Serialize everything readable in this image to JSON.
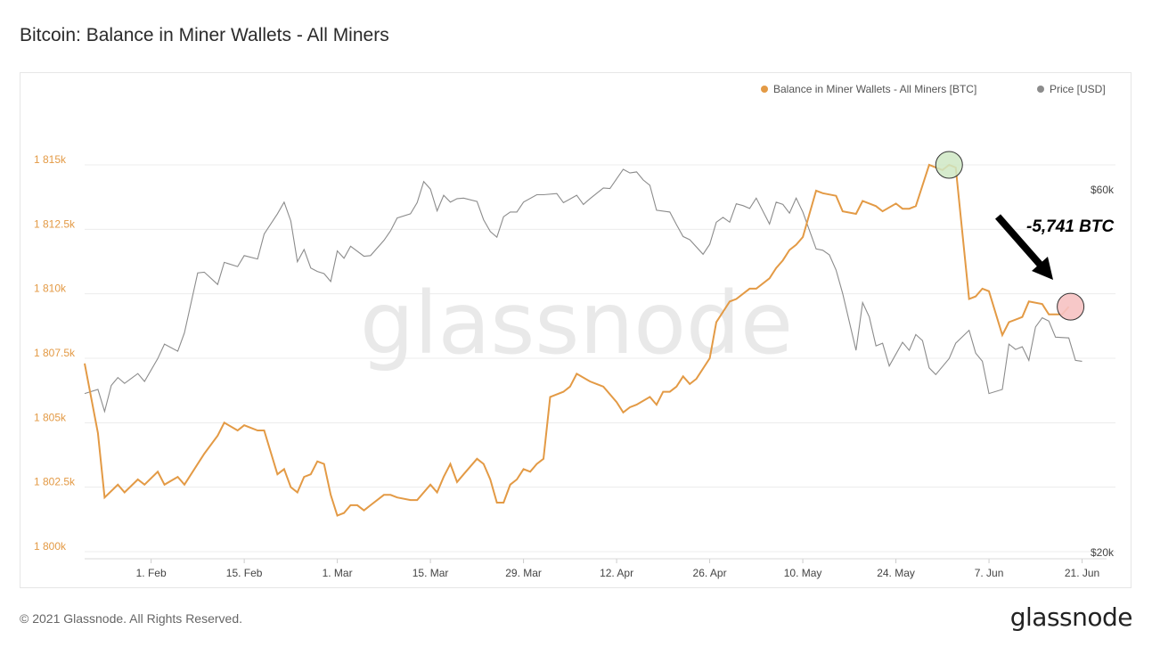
{
  "title": "Bitcoin: Balance in Miner Wallets - All Miners",
  "footer": {
    "copyright": "© 2021 Glassnode. All Rights Reserved.",
    "logo_text": "glassnode"
  },
  "watermark": "glassnode",
  "annotation": {
    "text": "-5,741 BTC"
  },
  "colors": {
    "balance": "#e39a45",
    "price": "#8c8c8c",
    "grid": "#ececec",
    "start_marker": "#cfe8c4",
    "end_marker": "#f6c2c2"
  },
  "chart_data": {
    "type": "line",
    "title": "Bitcoin: Balance in Miner Wallets - All Miners",
    "x_range": [
      "2021-01-22",
      "2021-06-22"
    ],
    "x_ticks": [
      {
        "date": "2021-02-01",
        "label": "1. Feb"
      },
      {
        "date": "2021-02-15",
        "label": "15. Feb"
      },
      {
        "date": "2021-03-01",
        "label": "1. Mar"
      },
      {
        "date": "2021-03-15",
        "label": "15. Mar"
      },
      {
        "date": "2021-03-29",
        "label": "29. Mar"
      },
      {
        "date": "2021-04-12",
        "label": "12. Apr"
      },
      {
        "date": "2021-04-26",
        "label": "26. Apr"
      },
      {
        "date": "2021-05-10",
        "label": "10. May"
      },
      {
        "date": "2021-05-24",
        "label": "24. May"
      },
      {
        "date": "2021-06-07",
        "label": "7. Jun"
      },
      {
        "date": "2021-06-21",
        "label": "21. Jun"
      }
    ],
    "y_left": {
      "ylim": [
        1800000,
        1815000
      ],
      "ticks": [
        {
          "value": 1800000,
          "label": "1 800k"
        },
        {
          "value": 1802500,
          "label": "1 802.5k"
        },
        {
          "value": 1805000,
          "label": "1 805k"
        },
        {
          "value": 1807500,
          "label": "1 807.5k"
        },
        {
          "value": 1810000,
          "label": "1 810k"
        },
        {
          "value": 1812500,
          "label": "1 812.5k"
        },
        {
          "value": 1815000,
          "label": "1 815k"
        }
      ]
    },
    "y_right": {
      "scale": "log",
      "ylim": [
        20000,
        60000
      ],
      "ticks": [
        {
          "value": 20000,
          "label": "$20k"
        },
        {
          "value": 60000,
          "label": "$60k"
        }
      ]
    },
    "legend_placement": "top-right",
    "series": [
      {
        "name": "Balance in Miner Wallets - All Miners [BTC]",
        "axis": "left",
        "x": [
          "2021-01-22",
          "2021-01-24",
          "2021-01-25",
          "2021-01-27",
          "2021-01-28",
          "2021-01-30",
          "2021-01-31",
          "2021-02-02",
          "2021-02-03",
          "2021-02-05",
          "2021-02-06",
          "2021-02-08",
          "2021-02-09",
          "2021-02-11",
          "2021-02-12",
          "2021-02-14",
          "2021-02-15",
          "2021-02-17",
          "2021-02-18",
          "2021-02-20",
          "2021-02-21",
          "2021-02-22",
          "2021-02-23",
          "2021-02-24",
          "2021-02-25",
          "2021-02-26",
          "2021-02-27",
          "2021-02-28",
          "2021-03-01",
          "2021-03-02",
          "2021-03-03",
          "2021-03-04",
          "2021-03-05",
          "2021-03-06",
          "2021-03-08",
          "2021-03-09",
          "2021-03-10",
          "2021-03-12",
          "2021-03-13",
          "2021-03-15",
          "2021-03-16",
          "2021-03-17",
          "2021-03-18",
          "2021-03-19",
          "2021-03-20",
          "2021-03-22",
          "2021-03-23",
          "2021-03-24",
          "2021-03-25",
          "2021-03-26",
          "2021-03-27",
          "2021-03-28",
          "2021-03-29",
          "2021-03-30",
          "2021-03-31",
          "2021-04-01",
          "2021-04-02",
          "2021-04-04",
          "2021-04-05",
          "2021-04-06",
          "2021-04-08",
          "2021-04-09",
          "2021-04-10",
          "2021-04-12",
          "2021-04-13",
          "2021-04-14",
          "2021-04-15",
          "2021-04-17",
          "2021-04-18",
          "2021-04-19",
          "2021-04-20",
          "2021-04-21",
          "2021-04-22",
          "2021-04-23",
          "2021-04-24",
          "2021-04-26",
          "2021-04-27",
          "2021-04-29",
          "2021-04-30",
          "2021-05-02",
          "2021-05-03",
          "2021-05-05",
          "2021-05-06",
          "2021-05-07",
          "2021-05-08",
          "2021-05-09",
          "2021-05-10",
          "2021-05-12",
          "2021-05-13",
          "2021-05-15",
          "2021-05-16",
          "2021-05-18",
          "2021-05-19",
          "2021-05-21",
          "2021-05-22",
          "2021-05-24",
          "2021-05-25",
          "2021-05-26",
          "2021-05-27",
          "2021-05-29",
          "2021-05-30",
          "2021-05-31",
          "2021-06-01",
          "2021-06-02",
          "2021-06-04",
          "2021-06-05",
          "2021-06-06",
          "2021-06-07",
          "2021-06-09",
          "2021-06-10",
          "2021-06-12",
          "2021-06-13",
          "2021-06-15",
          "2021-06-16",
          "2021-06-18",
          "2021-06-19"
        ],
        "values": [
          1807300,
          1804600,
          1802100,
          1802600,
          1802300,
          1802800,
          1802600,
          1803100,
          1802600,
          1802900,
          1802600,
          1803400,
          1803800,
          1804500,
          1805000,
          1804700,
          1804900,
          1804700,
          1804700,
          1803000,
          1803200,
          1802500,
          1802300,
          1802900,
          1803000,
          1803500,
          1803400,
          1802200,
          1801400,
          1801500,
          1801800,
          1801800,
          1801600,
          1801800,
          1802200,
          1802200,
          1802100,
          1802000,
          1802000,
          1802600,
          1802300,
          1802900,
          1803400,
          1802700,
          1803000,
          1803600,
          1803400,
          1802800,
          1801900,
          1801900,
          1802600,
          1802800,
          1803200,
          1803100,
          1803400,
          1803600,
          1806000,
          1806200,
          1806400,
          1806900,
          1806600,
          1806500,
          1806400,
          1805800,
          1805400,
          1805600,
          1805700,
          1806000,
          1805700,
          1806200,
          1806200,
          1806400,
          1806800,
          1806500,
          1806700,
          1807500,
          1808900,
          1809700,
          1809800,
          1810200,
          1810200,
          1810600,
          1811000,
          1811300,
          1811700,
          1811900,
          1812200,
          1814000,
          1813900,
          1813800,
          1813200,
          1813100,
          1813600,
          1813400,
          1813200,
          1813500,
          1813300,
          1813300,
          1813400,
          1815000,
          1814900,
          1814800,
          1815000,
          1814900,
          1809800,
          1809900,
          1810200,
          1810100,
          1808400,
          1808900,
          1809100,
          1809700,
          1809600,
          1809200,
          1809200,
          1809500
        ]
      },
      {
        "name": "Price [USD]",
        "axis": "right",
        "x": [
          "2021-01-22",
          "2021-01-24",
          "2021-01-25",
          "2021-01-26",
          "2021-01-27",
          "2021-01-28",
          "2021-01-30",
          "2021-01-31",
          "2021-02-02",
          "2021-02-03",
          "2021-02-05",
          "2021-02-06",
          "2021-02-08",
          "2021-02-09",
          "2021-02-11",
          "2021-02-12",
          "2021-02-14",
          "2021-02-15",
          "2021-02-17",
          "2021-02-18",
          "2021-02-20",
          "2021-02-21",
          "2021-02-22",
          "2021-02-23",
          "2021-02-24",
          "2021-02-25",
          "2021-02-26",
          "2021-02-27",
          "2021-02-28",
          "2021-03-01",
          "2021-03-02",
          "2021-03-03",
          "2021-03-05",
          "2021-03-06",
          "2021-03-08",
          "2021-03-09",
          "2021-03-10",
          "2021-03-12",
          "2021-03-13",
          "2021-03-14",
          "2021-03-15",
          "2021-03-16",
          "2021-03-17",
          "2021-03-18",
          "2021-03-19",
          "2021-03-20",
          "2021-03-22",
          "2021-03-23",
          "2021-03-24",
          "2021-03-25",
          "2021-03-26",
          "2021-03-27",
          "2021-03-28",
          "2021-03-29",
          "2021-03-31",
          "2021-04-01",
          "2021-04-03",
          "2021-04-04",
          "2021-04-06",
          "2021-04-07",
          "2021-04-08",
          "2021-04-10",
          "2021-04-11",
          "2021-04-13",
          "2021-04-14",
          "2021-04-15",
          "2021-04-16",
          "2021-04-17",
          "2021-04-18",
          "2021-04-20",
          "2021-04-21",
          "2021-04-22",
          "2021-04-23",
          "2021-04-25",
          "2021-04-26",
          "2021-04-27",
          "2021-04-28",
          "2021-04-29",
          "2021-04-30",
          "2021-05-01",
          "2021-05-02",
          "2021-05-03",
          "2021-05-05",
          "2021-05-06",
          "2021-05-07",
          "2021-05-08",
          "2021-05-09",
          "2021-05-10",
          "2021-05-12",
          "2021-05-13",
          "2021-05-14",
          "2021-05-15",
          "2021-05-16",
          "2021-05-18",
          "2021-05-19",
          "2021-05-20",
          "2021-05-21",
          "2021-05-22",
          "2021-05-23",
          "2021-05-25",
          "2021-05-26",
          "2021-05-27",
          "2021-05-28",
          "2021-05-29",
          "2021-05-30",
          "2021-06-01",
          "2021-06-02",
          "2021-06-04",
          "2021-06-05",
          "2021-06-06",
          "2021-06-07",
          "2021-06-09",
          "2021-06-10",
          "2021-06-11",
          "2021-06-12",
          "2021-06-13",
          "2021-06-14",
          "2021-06-15",
          "2021-06-16",
          "2021-06-17",
          "2021-06-19",
          "2021-06-20",
          "2021-06-21"
        ],
        "values": [
          32200,
          32600,
          30500,
          33000,
          33800,
          33200,
          34200,
          33400,
          35800,
          37400,
          36600,
          38700,
          46400,
          46500,
          44800,
          47900,
          47300,
          48900,
          48400,
          52200,
          55500,
          57500,
          54300,
          48000,
          49800,
          47100,
          46600,
          46300,
          45200,
          49600,
          48500,
          50300,
          48800,
          48900,
          51200,
          52700,
          54800,
          55500,
          57400,
          61200,
          59800,
          56000,
          58700,
          57500,
          58100,
          58200,
          57600,
          54500,
          52600,
          51700,
          55000,
          55800,
          55800,
          57500,
          58800,
          58800,
          59000,
          57400,
          58700,
          57100,
          58100,
          60000,
          59900,
          63500,
          62800,
          63000,
          61500,
          60500,
          56100,
          55800,
          53700,
          51800,
          51300,
          49100,
          50600,
          54100,
          54900,
          54100,
          57200,
          56900,
          56400,
          58200,
          53800,
          57500,
          57100,
          55600,
          58200,
          55800,
          49900,
          49700,
          49000,
          46800,
          43600,
          36700,
          42400,
          40600,
          37200,
          37500,
          35000,
          37600,
          36700,
          38500,
          37800,
          34800,
          34100,
          35800,
          37500,
          39000,
          36400,
          35500,
          32200,
          32600,
          37400,
          36800,
          37100,
          35600,
          39400,
          40500,
          40100,
          38200,
          38100,
          35600,
          35500
        ]
      }
    ]
  }
}
